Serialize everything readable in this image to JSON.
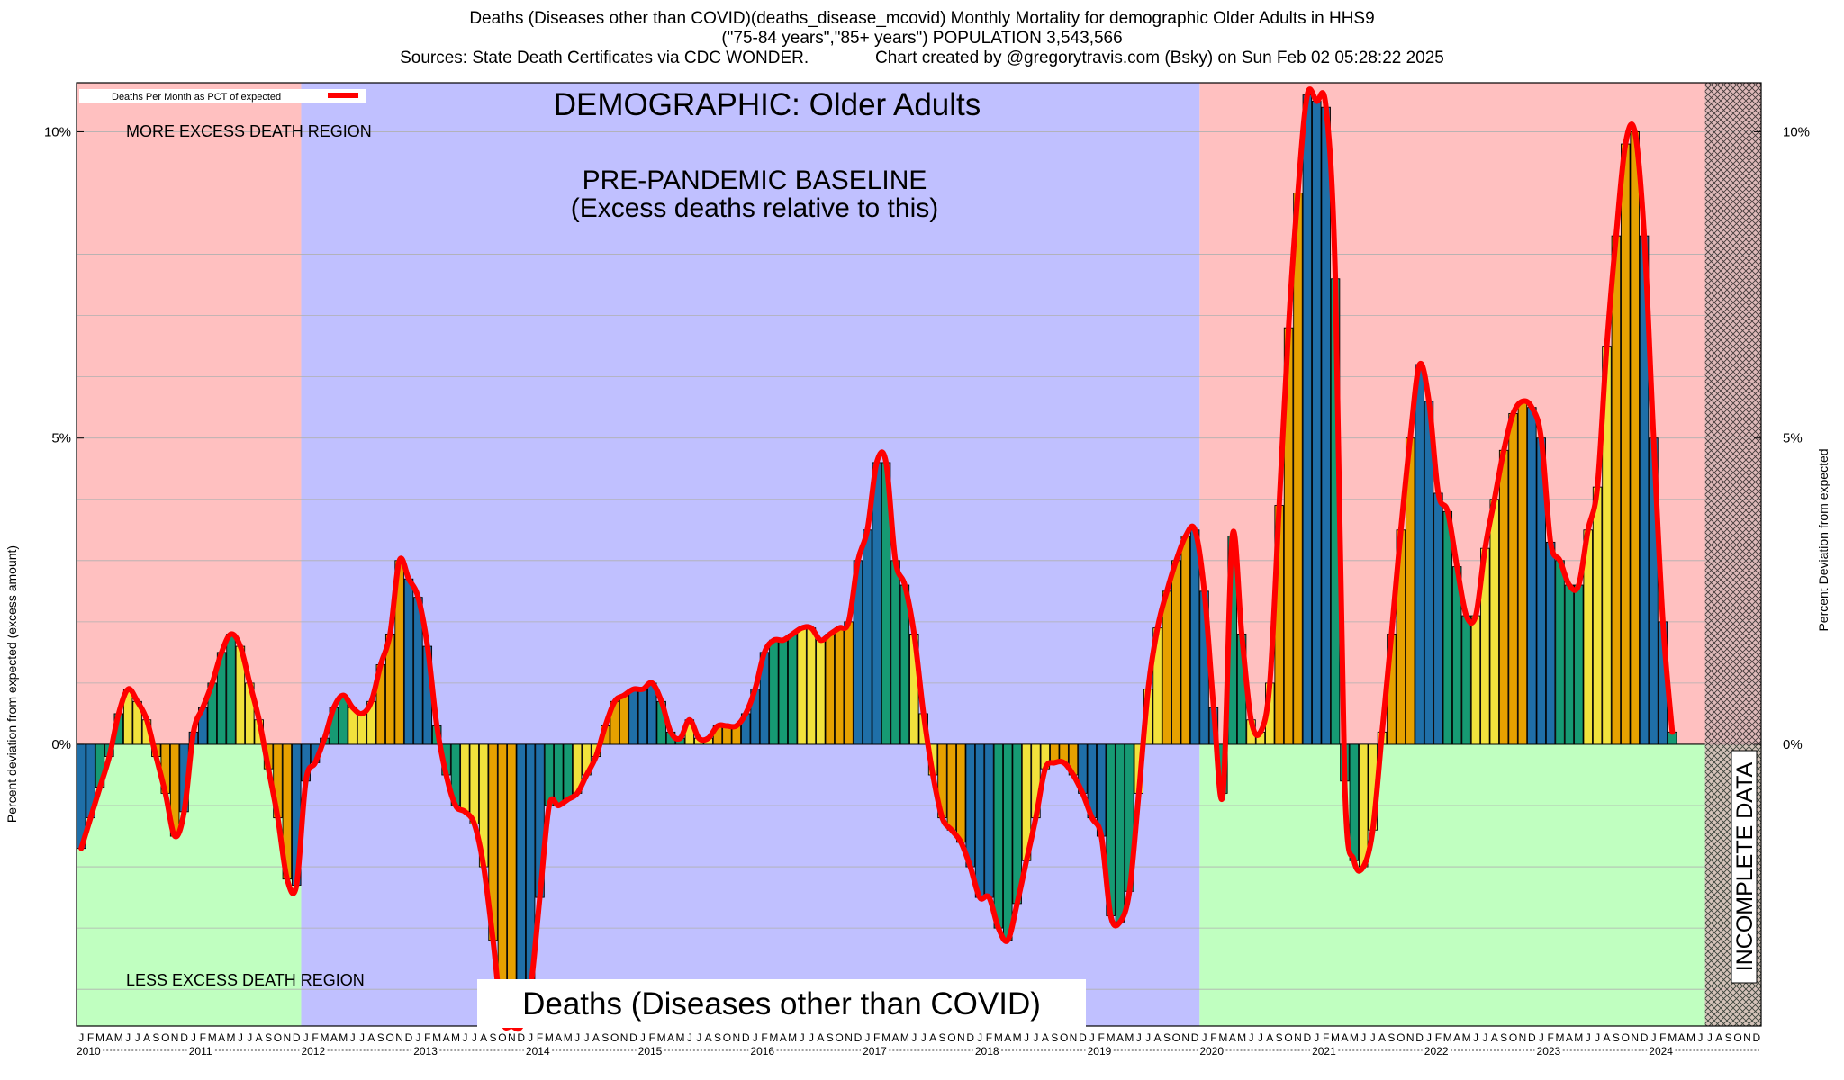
{
  "header": {
    "line1": "Deaths (Diseases other than COVID)(deaths_disease_mcovid) Monthly Mortality for demographic Older Adults in HHS9",
    "line2": "(\"75-84 years\",\"85+ years\") POPULATION 3,543,566",
    "line3": "Sources: State Death Certificates via CDC WONDER.              Chart created by @gregorytravis.com (Bsky) on Sun Feb 02 05:28:22 2025"
  },
  "chart_data": {
    "type": "bar",
    "ylabel_left": "Percent deviation from expected (excess amount)",
    "ylabel_right": "Percent Deviation from expected",
    "ylim": [
      -4.6,
      10.8
    ],
    "yticks": [
      0,
      5,
      10
    ],
    "ytick_labels": [
      "0%",
      "5%",
      "10%"
    ],
    "grid": true,
    "legend": {
      "placement": "top-left",
      "label": "Deaths Per Month as PCT of expected",
      "line_color": "#ff0000"
    },
    "years": [
      "2010",
      "2011",
      "2012",
      "2013",
      "2014",
      "2015",
      "2016",
      "2017",
      "2018",
      "2019",
      "2020",
      "2021",
      "2022",
      "2023",
      "2024"
    ],
    "month_letters": [
      "J",
      "F",
      "M",
      "A",
      "M",
      "J",
      "J",
      "A",
      "S",
      "O",
      "N",
      "D"
    ],
    "season_colors": [
      "#1f6fa8",
      "#169a73",
      "#f2e23c",
      "#e6a100"
    ],
    "annotations": {
      "demographic": "DEMOGRAPHIC: Older Adults",
      "baseline": "PRE-PANDEMIC BASELINE",
      "baseline_sub": "(Excess deaths relative to this)",
      "more_region": "MORE EXCESS DEATH REGION",
      "less_region": "LESS EXCESS DEATH REGION",
      "incomplete": "INCOMPLETE DATA",
      "subject": "Deaths (Diseases other than COVID)"
    },
    "regions": {
      "baseline_start": "2012-01",
      "baseline_end": "2019-12",
      "incomplete_start": "2024-07",
      "more_color": "#ffc0c0",
      "less_color": "#c0ffc0",
      "baseline_color": "#c0c0ff"
    },
    "values": [
      -1.7,
      -1.2,
      -0.7,
      -0.2,
      0.5,
      0.9,
      0.7,
      0.4,
      -0.2,
      -0.8,
      -1.5,
      -1.1,
      0.2,
      0.6,
      1.0,
      1.5,
      1.8,
      1.6,
      1.0,
      0.4,
      -0.4,
      -1.2,
      -2.2,
      -2.3,
      -0.6,
      -0.3,
      0.1,
      0.6,
      0.8,
      0.6,
      0.5,
      0.7,
      1.3,
      1.8,
      3.0,
      2.7,
      2.4,
      1.6,
      0.3,
      -0.5,
      -1.0,
      -1.1,
      -1.3,
      -2.0,
      -3.2,
      -4.5,
      -4.6,
      -4.6,
      -4.0,
      -2.5,
      -1.0,
      -1.0,
      -0.9,
      -0.8,
      -0.5,
      -0.2,
      0.3,
      0.7,
      0.8,
      0.9,
      0.9,
      1.0,
      0.7,
      0.2,
      0.1,
      0.4,
      0.1,
      0.1,
      0.3,
      0.3,
      0.3,
      0.5,
      0.9,
      1.5,
      1.7,
      1.7,
      1.8,
      1.9,
      1.9,
      1.7,
      1.8,
      1.9,
      2.0,
      3.0,
      3.5,
      4.6,
      4.6,
      3.0,
      2.6,
      1.8,
      0.5,
      -0.5,
      -1.2,
      -1.4,
      -1.6,
      -2.0,
      -2.5,
      -2.5,
      -3.0,
      -3.2,
      -2.6,
      -1.9,
      -1.2,
      -0.4,
      -0.3,
      -0.3,
      -0.5,
      -0.8,
      -1.2,
      -1.5,
      -2.8,
      -2.9,
      -2.4,
      -0.8,
      0.9,
      1.9,
      2.5,
      3.0,
      3.4,
      3.5,
      2.5,
      0.6,
      -0.8,
      3.4,
      1.8,
      0.4,
      0.2,
      1.0,
      3.9,
      6.8,
      9.0,
      10.6,
      10.5,
      10.4,
      7.6,
      -0.6,
      -1.9,
      -2.0,
      -1.4,
      0.2,
      1.8,
      3.5,
      5.0,
      6.2,
      5.6,
      4.1,
      3.8,
      2.9,
      2.1,
      2.1,
      3.2,
      4.0,
      4.8,
      5.4,
      5.6,
      5.5,
      5.0,
      3.3,
      3.0,
      2.6,
      2.6,
      3.5,
      4.2,
      6.5,
      8.3,
      9.8,
      10.0,
      8.3,
      5.0,
      2.0,
      0.2
    ]
  }
}
